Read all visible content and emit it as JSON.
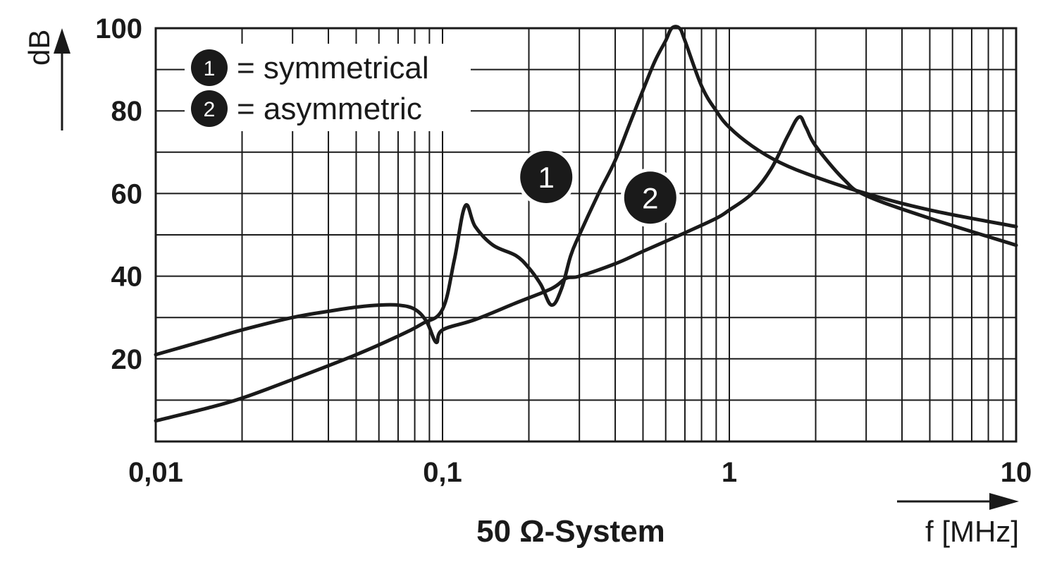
{
  "chart_data": {
    "type": "line",
    "title": "50 Ω-System",
    "xlabel": "f [MHz]",
    "ylabel": "dB",
    "x_scale": "log",
    "xlim": [
      0.01,
      10
    ],
    "ylim": [
      0,
      100
    ],
    "grid": true,
    "x_ticks": [
      {
        "value": 0.01,
        "label": "0,01"
      },
      {
        "value": 0.1,
        "label": "0,1"
      },
      {
        "value": 1,
        "label": "1"
      },
      {
        "value": 10,
        "label": "10"
      }
    ],
    "y_ticks": [
      {
        "value": 20,
        "label": "20"
      },
      {
        "value": 40,
        "label": "40"
      },
      {
        "value": 60,
        "label": "60"
      },
      {
        "value": 80,
        "label": "80"
      },
      {
        "value": 100,
        "label": "100"
      }
    ],
    "legend": [
      {
        "marker": "1",
        "text": "= symmetrical"
      },
      {
        "marker": "2",
        "text": "= asymmetric"
      }
    ],
    "series": [
      {
        "marker": "1",
        "points": [
          [
            0.01,
            5
          ],
          [
            0.015,
            8
          ],
          [
            0.02,
            10.5
          ],
          [
            0.03,
            15
          ],
          [
            0.05,
            21
          ],
          [
            0.07,
            25.5
          ],
          [
            0.085,
            28.5
          ],
          [
            0.1,
            32
          ],
          [
            0.11,
            44
          ],
          [
            0.12,
            57
          ],
          [
            0.13,
            52
          ],
          [
            0.15,
            47.5
          ],
          [
            0.18,
            45
          ],
          [
            0.2,
            42
          ],
          [
            0.22,
            38
          ],
          [
            0.24,
            33
          ],
          [
            0.26,
            37
          ],
          [
            0.28,
            45
          ],
          [
            0.3,
            50
          ],
          [
            0.35,
            60
          ],
          [
            0.4,
            68
          ],
          [
            0.45,
            77
          ],
          [
            0.5,
            85
          ],
          [
            0.55,
            92
          ],
          [
            0.6,
            97
          ],
          [
            0.63,
            100
          ],
          [
            0.67,
            100
          ],
          [
            0.7,
            97
          ],
          [
            0.8,
            86
          ],
          [
            0.9,
            80
          ],
          [
            1,
            76
          ],
          [
            1.2,
            71.5
          ],
          [
            1.5,
            67.5
          ],
          [
            2,
            64
          ],
          [
            3,
            60
          ],
          [
            5,
            56
          ],
          [
            10,
            52
          ]
        ]
      },
      {
        "marker": "2",
        "points": [
          [
            0.01,
            21
          ],
          [
            0.015,
            24.5
          ],
          [
            0.02,
            27
          ],
          [
            0.03,
            30
          ],
          [
            0.04,
            31.5
          ],
          [
            0.05,
            32.5
          ],
          [
            0.06,
            33
          ],
          [
            0.07,
            33
          ],
          [
            0.08,
            32
          ],
          [
            0.088,
            29
          ],
          [
            0.095,
            24
          ],
          [
            0.1,
            27
          ],
          [
            0.13,
            29.5
          ],
          [
            0.18,
            33.5
          ],
          [
            0.24,
            37
          ],
          [
            0.27,
            39.5
          ],
          [
            0.3,
            40
          ],
          [
            0.4,
            43
          ],
          [
            0.5,
            46
          ],
          [
            0.7,
            50.5
          ],
          [
            0.9,
            54
          ],
          [
            1,
            56
          ],
          [
            1.2,
            60
          ],
          [
            1.4,
            66
          ],
          [
            1.6,
            74
          ],
          [
            1.75,
            78.5
          ],
          [
            1.85,
            76
          ],
          [
            2,
            71.5
          ],
          [
            2.5,
            63.5
          ],
          [
            3,
            59.5
          ],
          [
            5,
            54
          ],
          [
            10,
            47.5
          ]
        ]
      }
    ],
    "annotations": [
      {
        "marker": "1",
        "x": 0.23,
        "y": 64
      },
      {
        "marker": "2",
        "x": 0.53,
        "y": 59
      }
    ]
  }
}
